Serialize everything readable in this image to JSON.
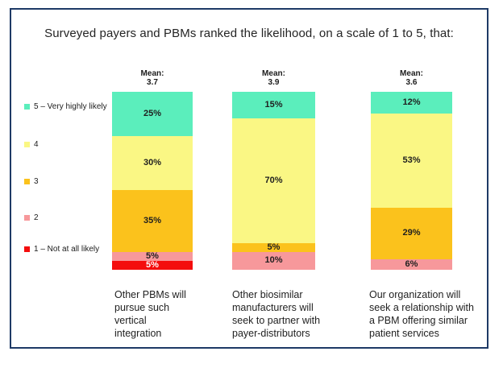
{
  "title": "Surveyed payers and PBMs ranked the likelihood, on a scale of 1 to 5, that:",
  "legend": {
    "items": [
      {
        "label": "5 – Very highly likely",
        "color": "#5beebc"
      },
      {
        "label": "4",
        "color": "#faf784"
      },
      {
        "label": "3",
        "color": "#fbc21c"
      },
      {
        "label": "2",
        "color": "#f7989b"
      },
      {
        "label": "1 – Not at all likely",
        "color": "#f40d0d"
      }
    ]
  },
  "chart_data": {
    "type": "bar",
    "variant": "100%-stacked-column",
    "unit": "percent",
    "ylim": [
      0,
      100
    ],
    "grid": false,
    "legend_position": "left",
    "mean_label": "Mean:",
    "means": [
      "3.7",
      "3.9",
      "3.6"
    ],
    "categories": [
      "Other PBMs will pursue such vertical integration",
      "Other biosimilar manufacturers will seek to partner with payer-distributors",
      "Our organization will seek a relationship with a PBM offering similar patient services"
    ],
    "series": [
      {
        "name": "5 – Very highly likely",
        "values": [
          25,
          15,
          12
        ]
      },
      {
        "name": "4",
        "values": [
          30,
          70,
          53
        ]
      },
      {
        "name": "3",
        "values": [
          35,
          5,
          29
        ]
      },
      {
        "name": "2",
        "values": [
          5,
          10,
          6
        ]
      },
      {
        "name": "1 – Not at all likely",
        "values": [
          5,
          0,
          0
        ]
      }
    ],
    "level_colors": {
      "5": "#5beebc",
      "4": "#faf784",
      "3": "#fbc21c",
      "2": "#f7989b",
      "1": "#f40d0d"
    },
    "bars": [
      {
        "segments": [
          {
            "level": "5",
            "pct": 25,
            "label": "25%"
          },
          {
            "level": "4",
            "pct": 30,
            "label": "30%"
          },
          {
            "level": "3",
            "pct": 35,
            "label": "35%"
          },
          {
            "level": "2",
            "pct": 5,
            "label": "5%"
          },
          {
            "level": "1",
            "pct": 5,
            "label": "5%",
            "label_color": "#ffffff"
          }
        ]
      },
      {
        "segments": [
          {
            "level": "5",
            "pct": 15,
            "label": "15%"
          },
          {
            "level": "4",
            "pct": 70,
            "label": "70%"
          },
          {
            "level": "3",
            "pct": 5,
            "label": "5%"
          },
          {
            "level": "2",
            "pct": 10,
            "label": "10%"
          }
        ]
      },
      {
        "segments": [
          {
            "level": "5",
            "pct": 12,
            "label": "12%"
          },
          {
            "level": "4",
            "pct": 53,
            "label": "53%"
          },
          {
            "level": "3",
            "pct": 29,
            "label": "29%"
          },
          {
            "level": "2",
            "pct": 6,
            "label": "6%"
          }
        ]
      }
    ]
  },
  "colors": {
    "frame_border": "#1e3a66",
    "background": "#ffffff",
    "text": "#1f1f1f"
  }
}
